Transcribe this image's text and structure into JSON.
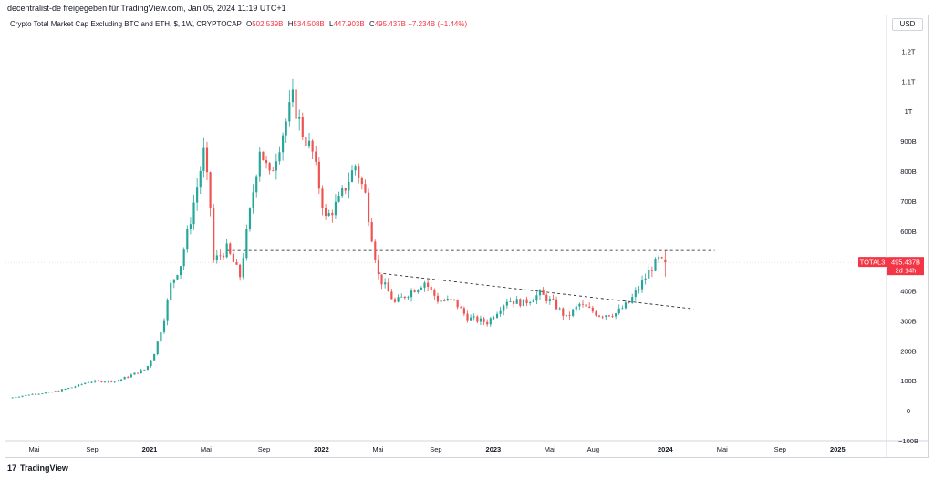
{
  "header": {
    "published_by": "decentralist-de freigegeben für TradingView.com, Jan 05, 2024 11:19 UTC+1"
  },
  "legend": {
    "title": "Crypto Total Market Cap Excluding BTC and ETH, $, 1W, CRYPTOCAP",
    "o_key": "O",
    "o_val": "502.539B",
    "h_key": "H",
    "h_val": "534.508B",
    "l_key": "L",
    "l_val": "447.903B",
    "c_key": "C",
    "c_val": "495.437B",
    "change": "−7.234B (−1.44%)"
  },
  "toolbar": {
    "currency": "USD"
  },
  "price_tag": {
    "symbol": "TOTAL3",
    "price": "495.437B",
    "countdown": "2d 14h"
  },
  "footer": {
    "brand": "TradingView",
    "logo_glyph": "17"
  },
  "colors": {
    "up": "#26a69a",
    "down": "#ef5350",
    "tag": "#f23645",
    "line": "#131722"
  },
  "chart_data": {
    "type": "candlestick",
    "interval": "1W",
    "y_unit": "USD",
    "ylim": [
      -100000000000,
      1250000000000
    ],
    "y_ticks": [
      "1.2T",
      "1.1T",
      "1T",
      "900B",
      "800B",
      "700B",
      "600B",
      "500B",
      "400B",
      "300B",
      "200B",
      "100B",
      "0",
      "−100B"
    ],
    "y_tick_values": [
      1200,
      1100,
      1000,
      900,
      800,
      700,
      600,
      500,
      400,
      300,
      200,
      100,
      0,
      -100
    ],
    "x_ticks": [
      "Mai",
      "Sep",
      "2021",
      "Mai",
      "Sep",
      "2022",
      "Mai",
      "Sep",
      "2023",
      "Mai",
      "Aug",
      "2024",
      "Mai",
      "Sep",
      "2025"
    ],
    "x_tick_dates": [
      "2020-05-01",
      "2020-09-01",
      "2021-01-01",
      "2021-05-01",
      "2021-09-01",
      "2022-01-01",
      "2022-05-01",
      "2022-09-01",
      "2023-01-01",
      "2023-05-01",
      "2023-08-01",
      "2024-01-01",
      "2024-05-01",
      "2024-09-01",
      "2025-01-01"
    ],
    "xlim": [
      "2020-03-01",
      "2025-04-15"
    ],
    "keypoints": [
      {
        "date": "2020-03-16",
        "close": 42
      },
      {
        "date": "2020-05-01",
        "close": 55
      },
      {
        "date": "2020-06-15",
        "close": 62
      },
      {
        "date": "2020-08-01",
        "close": 80
      },
      {
        "date": "2020-09-01",
        "close": 97
      },
      {
        "date": "2020-11-01",
        "close": 100
      },
      {
        "date": "2021-01-01",
        "close": 140
      },
      {
        "date": "2021-01-20",
        "close": 200
      },
      {
        "date": "2021-02-08",
        "close": 310
      },
      {
        "date": "2021-02-22",
        "close": 420
      },
      {
        "date": "2021-03-15",
        "close": 490
      },
      {
        "date": "2021-04-05",
        "close": 640
      },
      {
        "date": "2021-04-19",
        "close": 750
      },
      {
        "date": "2021-05-03",
        "close": 860
      },
      {
        "date": "2021-05-17",
        "close": 680
      },
      {
        "date": "2021-05-24",
        "close": 500
      },
      {
        "date": "2021-06-21",
        "close": 540
      },
      {
        "date": "2021-07-19",
        "close": 450
      },
      {
        "date": "2021-08-09",
        "close": 660
      },
      {
        "date": "2021-08-30",
        "close": 880
      },
      {
        "date": "2021-09-20",
        "close": 780
      },
      {
        "date": "2021-10-18",
        "close": 930
      },
      {
        "date": "2021-11-08",
        "close": 1040
      },
      {
        "date": "2021-11-29",
        "close": 930
      },
      {
        "date": "2021-12-20",
        "close": 860
      },
      {
        "date": "2022-01-17",
        "close": 640
      },
      {
        "date": "2022-02-14",
        "close": 700
      },
      {
        "date": "2022-03-21",
        "close": 820
      },
      {
        "date": "2022-04-11",
        "close": 720
      },
      {
        "date": "2022-05-09",
        "close": 450
      },
      {
        "date": "2022-06-13",
        "close": 360
      },
      {
        "date": "2022-07-18",
        "close": 400
      },
      {
        "date": "2022-08-15",
        "close": 430
      },
      {
        "date": "2022-09-12",
        "close": 370
      },
      {
        "date": "2022-10-17",
        "close": 365
      },
      {
        "date": "2022-11-14",
        "close": 310
      },
      {
        "date": "2022-12-26",
        "close": 295
      },
      {
        "date": "2023-02-06",
        "close": 370
      },
      {
        "date": "2023-03-13",
        "close": 360
      },
      {
        "date": "2023-04-17",
        "close": 390
      },
      {
        "date": "2023-05-15",
        "close": 360
      },
      {
        "date": "2023-06-12",
        "close": 310
      },
      {
        "date": "2023-07-10",
        "close": 355
      },
      {
        "date": "2023-08-21",
        "close": 320
      },
      {
        "date": "2023-09-25",
        "close": 325
      },
      {
        "date": "2023-10-23",
        "close": 360
      },
      {
        "date": "2023-11-13",
        "close": 410
      },
      {
        "date": "2023-12-11",
        "close": 480
      },
      {
        "date": "2023-12-25",
        "close": 503
      },
      {
        "date": "2024-01-01",
        "close": 495.437
      }
    ],
    "last_candle": {
      "date": "2024-01-01",
      "open": 502.539,
      "high": 534.508,
      "low": 447.903,
      "close": 495.437
    },
    "horizontal_lines": [
      {
        "style": "dashed",
        "value": 535,
        "from": "2021-06-14",
        "to": "2024-04-15"
      },
      {
        "style": "solid",
        "value": 437,
        "from": "2020-10-15",
        "to": "2024-04-15"
      }
    ],
    "trend_lines": [
      {
        "style": "dashed",
        "from": {
          "date": "2022-05-01",
          "value": 460
        },
        "to": {
          "date": "2024-03-01",
          "value": 340
        }
      }
    ]
  }
}
